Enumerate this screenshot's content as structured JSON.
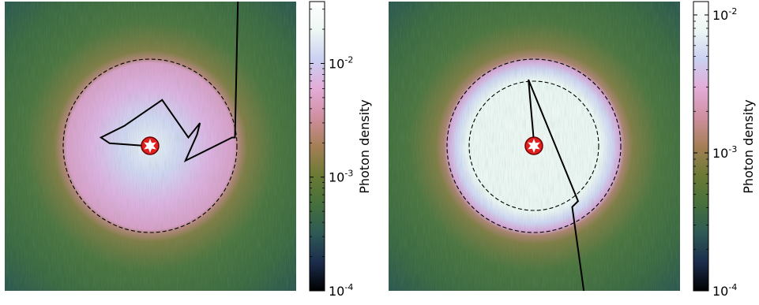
{
  "chart_data": [
    {
      "type": "heatmap",
      "colorbar": {
        "label": "Photon density",
        "scale": "log",
        "ticks": [
          {
            "value": 0.0001,
            "base": "10",
            "exp": "-4"
          },
          {
            "value": 0.001,
            "base": "10",
            "exp": "-3"
          },
          {
            "value": 0.01,
            "base": "10",
            "exp": "-2"
          }
        ],
        "range": [
          0.0001,
          0.035
        ]
      },
      "circles": [
        {
          "style": "dashed",
          "radius_fraction": 0.6
        }
      ],
      "path_vertices": [
        [
          0.5,
          0.5
        ],
        [
          0.36,
          0.49
        ],
        [
          0.33,
          0.47
        ],
        [
          0.41,
          0.43
        ],
        [
          0.54,
          0.34
        ],
        [
          0.63,
          0.47
        ],
        [
          0.67,
          0.42
        ],
        [
          0.66,
          0.46
        ],
        [
          0.62,
          0.55
        ],
        [
          0.78,
          0.47
        ],
        [
          0.79,
          0.47
        ],
        [
          0.8,
          0.0
        ]
      ],
      "source_marker": "star-in-circle",
      "cmap": [
        "#000000",
        "#1c2d4d",
        "#2e5a55",
        "#46703c",
        "#6b7a34",
        "#a57f56",
        "#cf8fa0",
        "#e3acd8",
        "#cad0f1",
        "#edf7f4",
        "#ffffff"
      ]
    },
    {
      "type": "heatmap",
      "colorbar": {
        "label": "Photon density",
        "scale": "log",
        "ticks": [
          {
            "value": 0.0001,
            "base": "10",
            "exp": "-4"
          },
          {
            "value": 0.001,
            "base": "10",
            "exp": "-3"
          },
          {
            "value": 0.01,
            "base": "10",
            "exp": "-2"
          }
        ],
        "range": [
          0.0001,
          0.0125
        ]
      },
      "circles": [
        {
          "style": "dashed",
          "radius_fraction": 0.6
        },
        {
          "style": "dashed",
          "radius_fraction": 0.45
        }
      ],
      "path_vertices": [
        [
          0.5,
          0.5
        ],
        [
          0.48,
          0.27
        ],
        [
          0.65,
          0.69
        ],
        [
          0.63,
          0.71
        ],
        [
          0.67,
          1.0
        ]
      ],
      "source_marker": "star-in-circle",
      "cmap": [
        "#000000",
        "#1c2d4d",
        "#2e5a55",
        "#46703c",
        "#6b7a34",
        "#a57f56",
        "#cf8fa0",
        "#e3acd8",
        "#cad0f1",
        "#edf7f4",
        "#ffffff"
      ]
    }
  ]
}
